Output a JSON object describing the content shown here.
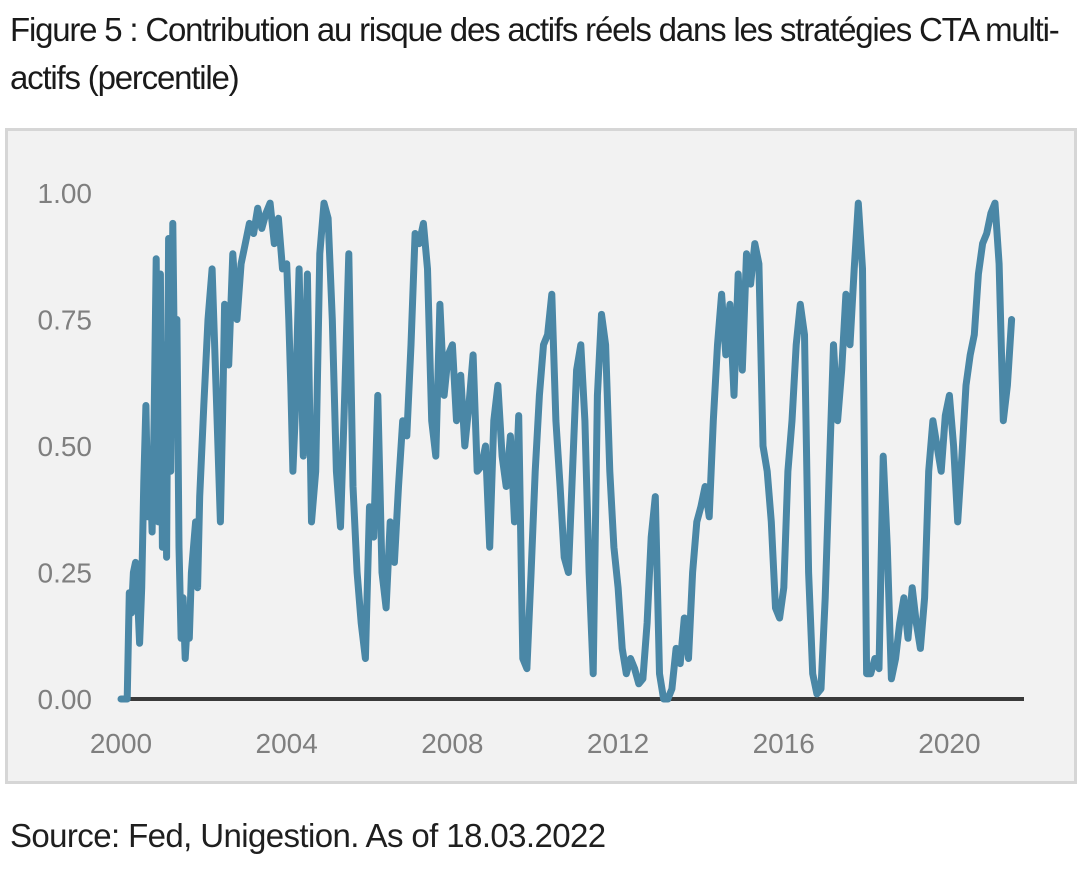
{
  "title": "Figure 5 : Contribution au risque des actifs réels dans les stratégies CTA multi-actifs (percentile)",
  "source": "Source: Fed, Unigestion. As of 18.03.2022",
  "colors": {
    "line": "#4a87a6",
    "axis": "#3a3a3a",
    "tick_text": "#7f7f7f",
    "panel_bg": "#f2f2f2",
    "panel_border": "#d6d6d6"
  },
  "chart_data": {
    "type": "line",
    "title": "Figure 5 : Contribution au risque des actifs réels dans les stratégies CTA multi-actifs (percentile)",
    "xlabel": "",
    "ylabel": "",
    "xlim": [
      2000,
      2021.8
    ],
    "ylim": [
      0,
      1
    ],
    "x_ticks": [
      2000,
      2004,
      2008,
      2012,
      2016,
      2020
    ],
    "x_tick_labels": [
      "2000",
      "2004",
      "2008",
      "2012",
      "2016",
      "2020"
    ],
    "y_ticks": [
      0,
      0.25,
      0.5,
      0.75,
      1
    ],
    "y_tick_labels": [
      "0.00",
      "0.25",
      "0.50",
      "0.75",
      "1.00"
    ],
    "grid": false,
    "legend": "none",
    "series": [
      {
        "x": [
          2000.0,
          2000.15,
          2000.2,
          2000.25,
          2000.3,
          2000.35,
          2000.4,
          2000.45,
          2000.5,
          2000.55,
          2000.6,
          2000.65,
          2000.7,
          2000.75,
          2000.8,
          2000.85,
          2000.9,
          2000.95,
          2001.0,
          2001.05,
          2001.1,
          2001.15,
          2001.2,
          2001.25,
          2001.3,
          2001.35,
          2001.4,
          2001.45,
          2001.5,
          2001.55,
          2001.6,
          2001.65,
          2001.7,
          2001.75,
          2001.8,
          2001.85,
          2001.9,
          2002.0,
          2002.1,
          2002.2,
          2002.3,
          2002.4,
          2002.45,
          2002.5,
          2002.6,
          2002.7,
          2002.8,
          2002.9,
          2003.0,
          2003.1,
          2003.2,
          2003.3,
          2003.4,
          2003.5,
          2003.6,
          2003.7,
          2003.8,
          2003.9,
          2004.0,
          2004.05,
          2004.1,
          2004.15,
          2004.2,
          2004.3,
          2004.4,
          2004.5,
          2004.6,
          2004.7,
          2004.8,
          2004.9,
          2005.0,
          2005.1,
          2005.2,
          2005.3,
          2005.4,
          2005.5,
          2005.6,
          2005.7,
          2005.8,
          2005.9,
          2006.0,
          2006.1,
          2006.2,
          2006.3,
          2006.4,
          2006.5,
          2006.6,
          2006.7,
          2006.8,
          2006.9,
          2007.0,
          2007.1,
          2007.2,
          2007.3,
          2007.4,
          2007.5,
          2007.6,
          2007.7,
          2007.8,
          2007.9,
          2008.0,
          2008.1,
          2008.2,
          2008.3,
          2008.4,
          2008.5,
          2008.6,
          2008.7,
          2008.8,
          2008.9,
          2009.0,
          2009.1,
          2009.2,
          2009.3,
          2009.4,
          2009.5,
          2009.6,
          2009.7,
          2009.8,
          2009.9,
          2010.0,
          2010.1,
          2010.2,
          2010.3,
          2010.4,
          2010.5,
          2010.6,
          2010.7,
          2010.8,
          2010.9,
          2011.0,
          2011.1,
          2011.2,
          2011.3,
          2011.4,
          2011.5,
          2011.6,
          2011.7,
          2011.8,
          2011.9,
          2012.0,
          2012.1,
          2012.2,
          2012.3,
          2012.4,
          2012.5,
          2012.6,
          2012.7,
          2012.8,
          2012.9,
          2013.0,
          2013.1,
          2013.2,
          2013.3,
          2013.4,
          2013.5,
          2013.6,
          2013.7,
          2013.8,
          2013.9,
          2014.0,
          2014.1,
          2014.2,
          2014.3,
          2014.4,
          2014.5,
          2014.6,
          2014.7,
          2014.8,
          2014.9,
          2015.0,
          2015.1,
          2015.2,
          2015.3,
          2015.4,
          2015.5,
          2015.6,
          2015.7,
          2015.8,
          2015.9,
          2016.0,
          2016.1,
          2016.2,
          2016.3,
          2016.4,
          2016.5,
          2016.6,
          2016.7,
          2016.8,
          2016.9,
          2017.0,
          2017.1,
          2017.2,
          2017.3,
          2017.4,
          2017.5,
          2017.6,
          2017.7,
          2017.8,
          2017.9,
          2018.0,
          2018.1,
          2018.2,
          2018.3,
          2018.4,
          2018.5,
          2018.6,
          2018.7,
          2018.8,
          2018.9,
          2019.0,
          2019.1,
          2019.2,
          2019.3,
          2019.4,
          2019.5,
          2019.6,
          2019.7,
          2019.8,
          2019.9,
          2020.0,
          2020.1,
          2020.2,
          2020.3,
          2020.4,
          2020.5,
          2020.6,
          2020.7,
          2020.8,
          2020.9,
          2021.0,
          2021.1,
          2021.2,
          2021.3,
          2021.4,
          2021.5
        ],
        "y": [
          0.0,
          0.0,
          0.21,
          0.17,
          0.25,
          0.27,
          0.2,
          0.11,
          0.22,
          0.43,
          0.58,
          0.36,
          0.48,
          0.33,
          0.55,
          0.87,
          0.35,
          0.84,
          0.3,
          0.7,
          0.28,
          0.91,
          0.45,
          0.94,
          0.6,
          0.75,
          0.3,
          0.12,
          0.2,
          0.08,
          0.15,
          0.12,
          0.25,
          0.3,
          0.35,
          0.22,
          0.4,
          0.58,
          0.75,
          0.85,
          0.6,
          0.35,
          0.55,
          0.78,
          0.66,
          0.88,
          0.75,
          0.86,
          0.9,
          0.94,
          0.92,
          0.97,
          0.93,
          0.96,
          0.98,
          0.9,
          0.95,
          0.85,
          0.86,
          0.75,
          0.62,
          0.45,
          0.55,
          0.85,
          0.48,
          0.84,
          0.35,
          0.45,
          0.88,
          0.98,
          0.95,
          0.75,
          0.45,
          0.34,
          0.6,
          0.88,
          0.42,
          0.25,
          0.15,
          0.08,
          0.38,
          0.32,
          0.6,
          0.25,
          0.18,
          0.35,
          0.27,
          0.42,
          0.55,
          0.52,
          0.7,
          0.92,
          0.9,
          0.94,
          0.85,
          0.55,
          0.48,
          0.78,
          0.6,
          0.68,
          0.7,
          0.55,
          0.64,
          0.5,
          0.58,
          0.68,
          0.45,
          0.46,
          0.5,
          0.3,
          0.55,
          0.62,
          0.48,
          0.42,
          0.52,
          0.35,
          0.56,
          0.08,
          0.06,
          0.25,
          0.45,
          0.6,
          0.7,
          0.72,
          0.8,
          0.55,
          0.42,
          0.28,
          0.25,
          0.45,
          0.65,
          0.7,
          0.55,
          0.25,
          0.05,
          0.6,
          0.76,
          0.7,
          0.45,
          0.3,
          0.22,
          0.1,
          0.05,
          0.08,
          0.06,
          0.03,
          0.04,
          0.15,
          0.32,
          0.4,
          0.05,
          0.0,
          0.0,
          0.02,
          0.1,
          0.07,
          0.16,
          0.08,
          0.25,
          0.35,
          0.38,
          0.42,
          0.36,
          0.55,
          0.7,
          0.8,
          0.68,
          0.78,
          0.6,
          0.84,
          0.65,
          0.88,
          0.82,
          0.9,
          0.86,
          0.5,
          0.45,
          0.35,
          0.18,
          0.16,
          0.22,
          0.45,
          0.55,
          0.7,
          0.78,
          0.72,
          0.25,
          0.05,
          0.01,
          0.02,
          0.2,
          0.45,
          0.7,
          0.55,
          0.65,
          0.8,
          0.7,
          0.85,
          0.98,
          0.85,
          0.05,
          0.05,
          0.08,
          0.06,
          0.48,
          0.3,
          0.04,
          0.08,
          0.15,
          0.2,
          0.12,
          0.22,
          0.15,
          0.1,
          0.2,
          0.45,
          0.55,
          0.5,
          0.45,
          0.56,
          0.6,
          0.5,
          0.35,
          0.48,
          0.62,
          0.68,
          0.72,
          0.84,
          0.9,
          0.92,
          0.96,
          0.98,
          0.86,
          0.55,
          0.62,
          0.75
        ]
      }
    ]
  }
}
